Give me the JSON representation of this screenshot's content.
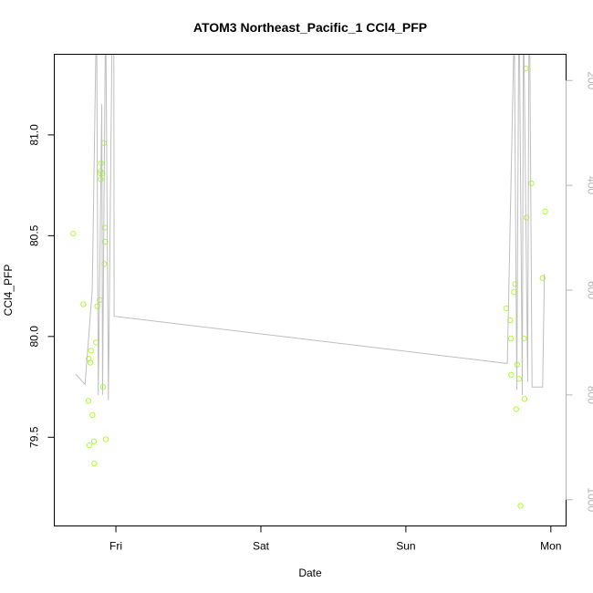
{
  "chart_data": {
    "type": "scatter",
    "title": "ATOM3 Northeast_Pacific_1 CCl4_PFP",
    "xlabel": "Date",
    "ylabel": "CCl4_PFP",
    "x_ticks": [
      "Fri",
      "Sat",
      "Sun",
      "Mon"
    ],
    "x_tick_days": [
      1,
      2,
      3,
      4
    ],
    "x_range_days": [
      0.575,
      4.105
    ],
    "ylim": [
      79.06,
      81.4
    ],
    "y_ticks": [
      79.5,
      80.0,
      80.5,
      81.0
    ],
    "y2_range": [
      1050,
      150
    ],
    "y2_ticks": [
      200,
      400,
      600,
      800,
      1000
    ],
    "colors": {
      "points": "#adff2f",
      "line": "#bebebe",
      "axis": "#000000",
      "axis2": "#b4b4b4"
    },
    "series": [
      {
        "kind": "points",
        "axis": "left",
        "points": [
          [
            0.706,
            80.51
          ],
          [
            0.775,
            80.16
          ],
          [
            0.811,
            79.68
          ],
          [
            0.813,
            79.89
          ],
          [
            0.816,
            79.46
          ],
          [
            0.824,
            79.87
          ],
          [
            0.828,
            79.93
          ],
          [
            0.838,
            79.61
          ],
          [
            0.849,
            79.48
          ],
          [
            0.851,
            79.37
          ],
          [
            0.863,
            79.97
          ],
          [
            0.872,
            80.15
          ],
          [
            0.889,
            80.18
          ],
          [
            0.891,
            80.81
          ],
          [
            0.893,
            80.82
          ],
          [
            0.895,
            80.78
          ],
          [
            0.897,
            80.86
          ],
          [
            0.907,
            80.81
          ],
          [
            0.912,
            79.75
          ],
          [
            0.917,
            80.96
          ],
          [
            0.92,
            80.36
          ],
          [
            0.924,
            80.54
          ],
          [
            0.927,
            80.47
          ],
          [
            0.931,
            79.49
          ],
          [
            3.692,
            80.14
          ],
          [
            3.72,
            80.08
          ],
          [
            3.724,
            79.99
          ],
          [
            3.726,
            79.81
          ],
          [
            3.745,
            80.22
          ],
          [
            3.754,
            80.26
          ],
          [
            3.761,
            79.64
          ],
          [
            3.767,
            79.86
          ],
          [
            3.78,
            79.79
          ],
          [
            3.791,
            79.16
          ],
          [
            3.815,
            79.99
          ],
          [
            3.818,
            79.69
          ],
          [
            3.827,
            81.33
          ],
          [
            3.832,
            80.59
          ],
          [
            3.866,
            80.76
          ],
          [
            3.943,
            80.29
          ],
          [
            3.96,
            80.62
          ]
        ]
      },
      {
        "kind": "line",
        "axis": "right",
        "points": [
          [
            0.722,
            760
          ],
          [
            0.787,
            780
          ],
          [
            0.837,
            600
          ],
          [
            0.861,
            150
          ],
          [
            0.868,
            150
          ],
          [
            0.878,
            800
          ],
          [
            0.903,
            245
          ],
          [
            0.908,
            800
          ],
          [
            0.926,
            150
          ],
          [
            0.932,
            150
          ],
          [
            0.948,
            810
          ],
          [
            0.972,
            150
          ],
          [
            0.986,
            150
          ],
          [
            0.988,
            650
          ],
          [
            3.7,
            740
          ],
          [
            3.743,
            150
          ],
          [
            3.749,
            150
          ],
          [
            3.765,
            790
          ],
          [
            3.778,
            150
          ],
          [
            3.784,
            150
          ],
          [
            3.803,
            800
          ],
          [
            3.81,
            150
          ],
          [
            3.815,
            150
          ],
          [
            3.84,
            775
          ],
          [
            3.848,
            150
          ],
          [
            3.855,
            150
          ],
          [
            3.87,
            785
          ],
          [
            3.943,
            785
          ],
          [
            3.955,
            570
          ]
        ]
      }
    ]
  }
}
